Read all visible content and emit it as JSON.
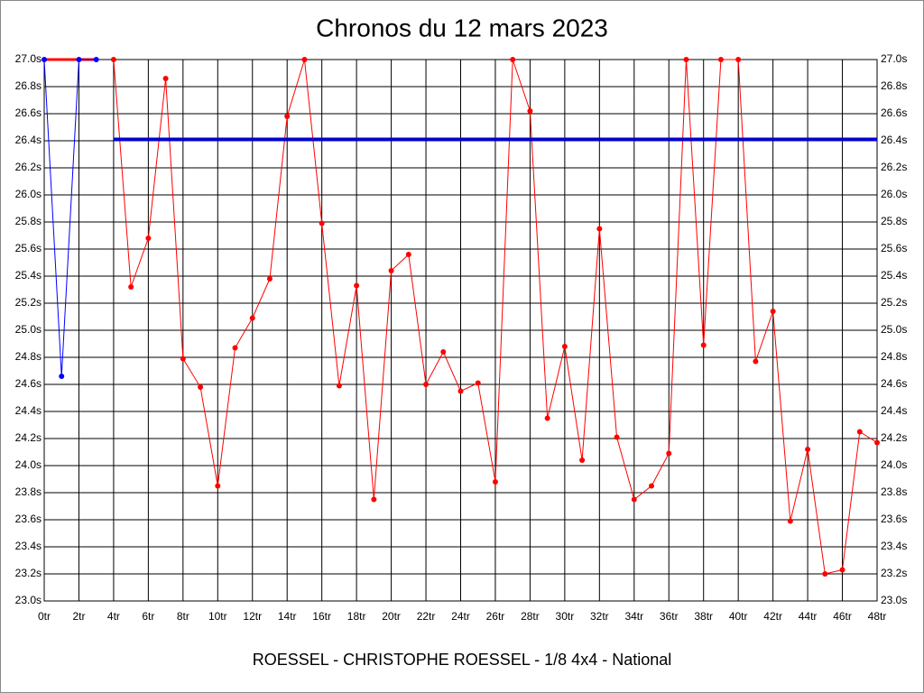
{
  "chart_data": {
    "type": "line",
    "title": "Chronos du 12 mars 2023",
    "subtitle": "ROESSEL - CHRISTOPHE ROESSEL - 1/8 4x4 - National",
    "xlim": [
      0,
      48
    ],
    "xticks": [
      {
        "value": 0,
        "label": "0tr"
      },
      {
        "value": 2,
        "label": "2tr"
      },
      {
        "value": 4,
        "label": "4tr"
      },
      {
        "value": 6,
        "label": "6tr"
      },
      {
        "value": 8,
        "label": "8tr"
      },
      {
        "value": 10,
        "label": "10tr"
      },
      {
        "value": 12,
        "label": "12tr"
      },
      {
        "value": 14,
        "label": "14tr"
      },
      {
        "value": 16,
        "label": "16tr"
      },
      {
        "value": 18,
        "label": "18tr"
      },
      {
        "value": 20,
        "label": "20tr"
      },
      {
        "value": 22,
        "label": "22tr"
      },
      {
        "value": 24,
        "label": "24tr"
      },
      {
        "value": 26,
        "label": "26tr"
      },
      {
        "value": 28,
        "label": "28tr"
      },
      {
        "value": 30,
        "label": "30tr"
      },
      {
        "value": 32,
        "label": "32tr"
      },
      {
        "value": 34,
        "label": "34tr"
      },
      {
        "value": 36,
        "label": "36tr"
      },
      {
        "value": 38,
        "label": "38tr"
      },
      {
        "value": 40,
        "label": "40tr"
      },
      {
        "value": 42,
        "label": "42tr"
      },
      {
        "value": 44,
        "label": "44tr"
      },
      {
        "value": 46,
        "label": "46tr"
      },
      {
        "value": 48,
        "label": "48tr"
      }
    ],
    "ylim": [
      23.0,
      27.0
    ],
    "yticks": [
      {
        "value": 23.0,
        "label": "23.0s"
      },
      {
        "value": 23.2,
        "label": "23.2s"
      },
      {
        "value": 23.4,
        "label": "23.4s"
      },
      {
        "value": 23.6,
        "label": "23.6s"
      },
      {
        "value": 23.8,
        "label": "23.8s"
      },
      {
        "value": 24.0,
        "label": "24.0s"
      },
      {
        "value": 24.2,
        "label": "24.2s"
      },
      {
        "value": 24.4,
        "label": "24.4s"
      },
      {
        "value": 24.6,
        "label": "24.6s"
      },
      {
        "value": 24.8,
        "label": "24.8s"
      },
      {
        "value": 25.0,
        "label": "25.0s"
      },
      {
        "value": 25.2,
        "label": "25.2s"
      },
      {
        "value": 25.4,
        "label": "25.4s"
      },
      {
        "value": 25.6,
        "label": "25.6s"
      },
      {
        "value": 25.8,
        "label": "25.8s"
      },
      {
        "value": 26.0,
        "label": "26.0s"
      },
      {
        "value": 26.2,
        "label": "26.2s"
      },
      {
        "value": 26.4,
        "label": "26.4s"
      },
      {
        "value": 26.6,
        "label": "26.6s"
      },
      {
        "value": 26.8,
        "label": "26.8s"
      },
      {
        "value": 27.0,
        "label": "27.0s"
      }
    ],
    "grid": true,
    "series": [
      {
        "color": "#ff0000",
        "markers": false,
        "x": [
          0,
          1,
          2,
          3
        ],
        "values": [
          27.0,
          27.0,
          27.0,
          27.0
        ]
      },
      {
        "color": "#0000ff",
        "markers": true,
        "x": [
          0,
          1,
          2,
          3
        ],
        "values": [
          27.0,
          24.66,
          27.0,
          27.0
        ]
      },
      {
        "color": "#ff0000",
        "markers": true,
        "x": [
          4,
          5,
          6,
          7,
          8,
          9,
          10,
          11,
          12,
          13,
          14,
          15,
          16,
          17,
          18,
          19,
          20,
          21,
          22,
          23,
          24,
          25,
          26,
          27,
          28,
          29,
          30,
          31,
          32,
          33,
          34,
          35,
          36,
          37,
          38,
          39,
          40,
          41,
          42,
          43,
          44,
          45,
          46,
          47,
          48
        ],
        "values": [
          27.0,
          25.32,
          25.68,
          26.86,
          24.79,
          24.58,
          23.85,
          24.87,
          25.09,
          25.38,
          26.58,
          27.0,
          25.79,
          24.59,
          25.33,
          23.75,
          25.44,
          25.56,
          24.6,
          24.84,
          24.55,
          24.61,
          23.88,
          27.0,
          26.62,
          24.35,
          24.88,
          24.04,
          25.75,
          24.21,
          23.75,
          23.85,
          24.09,
          27.0,
          24.89,
          27.0,
          27.0,
          24.77,
          25.14,
          23.59,
          24.12,
          23.2,
          23.23,
          24.25,
          24.17
        ]
      },
      {
        "color": "#0000cc",
        "markers": false,
        "x": [
          4,
          48
        ],
        "values": [
          26.41,
          26.41
        ]
      }
    ]
  }
}
